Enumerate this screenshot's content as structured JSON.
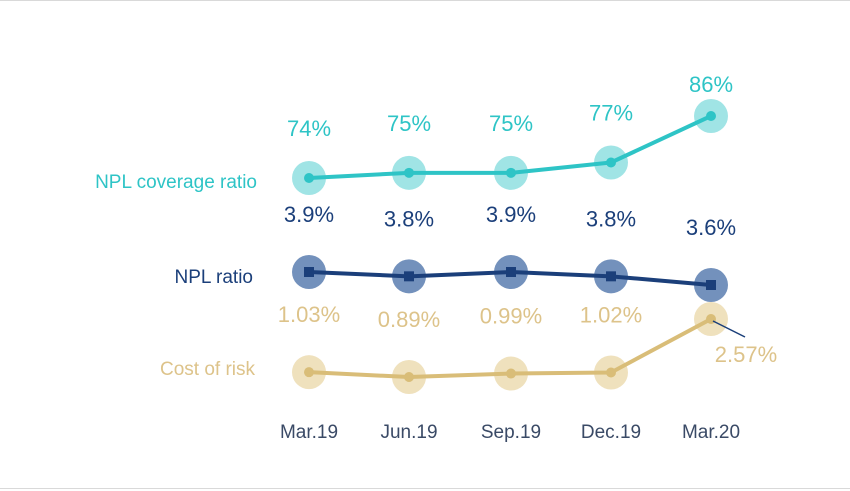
{
  "chart_data": {
    "type": "line",
    "categories": [
      "Mar.19",
      "Jun.19",
      "Sep.19",
      "Dec.19",
      "Mar.20"
    ],
    "series": [
      {
        "name": "NPL coverage ratio",
        "values": [
          74,
          75,
          75,
          77,
          86
        ],
        "labels": [
          "74%",
          "75%",
          "75%",
          "77%",
          "86%"
        ],
        "color": "#2ec4c6",
        "halo": "#8fdfe0"
      },
      {
        "name": "NPL ratio",
        "values": [
          3.9,
          3.8,
          3.9,
          3.8,
          3.6
        ],
        "labels": [
          "3.9%",
          "3.8%",
          "3.9%",
          "3.8%",
          "3.6%"
        ],
        "color": "#1b3f7a",
        "halo": "#5a7eb0"
      },
      {
        "name": "Cost of risk",
        "values": [
          1.03,
          0.89,
          0.99,
          1.02,
          2.57
        ],
        "labels": [
          "1.03%",
          "0.89%",
          "0.99%",
          "1.02%",
          "2.57%"
        ],
        "color": "#d9bd78",
        "halo": "#ecdcb2"
      }
    ],
    "grid": false,
    "legend": "left"
  }
}
